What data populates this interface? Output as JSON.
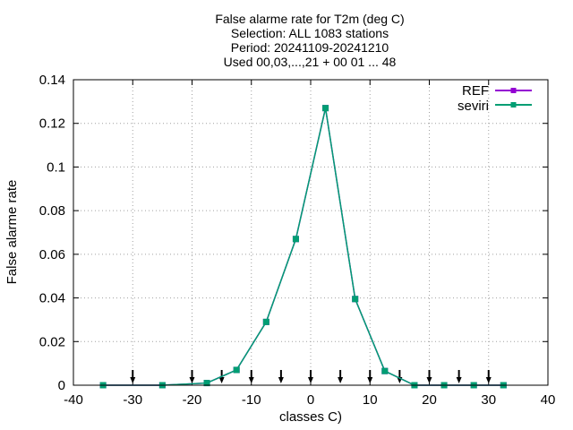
{
  "chart_data": {
    "type": "line",
    "title_lines": [
      "False alarme rate  for T2m (deg C)",
      "Selection: ALL   1083 stations",
      "Period: 20241109-20241210",
      "Used 00,03,...,21 + 00 01 ... 48"
    ],
    "xlabel": "classes C)",
    "ylabel": "False alarme rate",
    "xlim": [
      -40,
      40
    ],
    "ylim": [
      0,
      0.14
    ],
    "xticks": [
      -40,
      -30,
      -20,
      -10,
      0,
      10,
      20,
      30,
      40
    ],
    "yticks": [
      0,
      0.02,
      0.04,
      0.06,
      0.08,
      0.1,
      0.12,
      0.14
    ],
    "xtick_labels": [
      "-40",
      "-30",
      "-20",
      "-10",
      "0",
      "10",
      "20",
      "30",
      "40"
    ],
    "ytick_labels": [
      "0",
      "0.02",
      "0.04",
      "0.06",
      "0.08",
      "0.1",
      "0.12",
      "0.14"
    ],
    "grid": true,
    "legend_position": "top-right",
    "class_thresholds": [
      -30,
      -20,
      -15,
      -10,
      -5,
      0,
      5,
      10,
      15,
      20,
      25,
      30
    ],
    "x": [
      -35,
      -25,
      -17.5,
      -12.5,
      -7.5,
      -2.5,
      2.5,
      7.5,
      12.5,
      17.5,
      22.5,
      27.5,
      32.5
    ],
    "series": [
      {
        "name": "REF",
        "color": "#9400d3",
        "values": [
          0,
          0,
          0.001,
          0.007,
          0.029,
          0.067,
          0.127,
          0.0395,
          0.0065,
          0,
          0,
          0,
          0
        ]
      },
      {
        "name": "seviri",
        "color": "#009e73",
        "values": [
          0,
          0,
          0.001,
          0.007,
          0.029,
          0.067,
          0.127,
          0.0395,
          0.0065,
          0,
          0,
          0,
          0
        ]
      }
    ]
  }
}
